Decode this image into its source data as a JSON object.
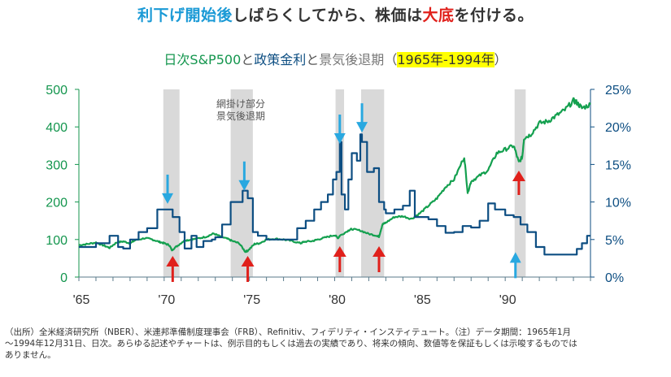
{
  "header": {
    "title_part1": "利下げ開始後",
    "title_part2": "しばらくしてから、株価は",
    "title_part3": "大底",
    "title_part4": "を付ける。",
    "subtitle_part1": "日次S&P500",
    "subtitle_part2": "と",
    "subtitle_part3": "政策金利",
    "subtitle_part4": "と",
    "subtitle_part5": "景気後退期",
    "subtitle_part6": "（",
    "subtitle_part7": "1965年-1994年",
    "subtitle_part8": "）"
  },
  "colors": {
    "sp500": "#14a04f",
    "fed_rate": "#0d4e82",
    "recession": "#d9d9d9",
    "rate_cut_arrow": "#29a8e0",
    "bottom_arrow": "#e0201b",
    "left_axis": "#14964e",
    "right_axis": "#0d4e82"
  },
  "chart_data": {
    "type": "line",
    "title": "日次S&P500と政策金利と景気後退期（1965年-1994年）",
    "xlabel": "",
    "ylabel_left": "S&P500",
    "ylabel_right": "政策金利",
    "x_range": [
      1965,
      1995
    ],
    "ylim_left": [
      0,
      500
    ],
    "ylim_right": [
      0,
      25
    ],
    "yticks_left": [
      "0",
      "100",
      "200",
      "300",
      "400",
      "500"
    ],
    "yticks_right": [
      "0%",
      "5%",
      "10%",
      "15%",
      "20%",
      "25%"
    ],
    "xticks": [
      {
        "year": 1965,
        "label": "'65"
      },
      {
        "year": 1970,
        "label": "'70"
      },
      {
        "year": 1975,
        "label": "'75"
      },
      {
        "year": 1980,
        "label": "'80"
      },
      {
        "year": 1985,
        "label": "'85"
      },
      {
        "year": 1990,
        "label": "'90"
      }
    ],
    "annotation_recession": "網掛け部分\n景気後退期",
    "annotation_recession_line1": "網掛け部分",
    "annotation_recession_line2": "景気後退期",
    "recessions": [
      {
        "start": 1969.95,
        "end": 1970.9
      },
      {
        "start": 1973.9,
        "end": 1975.2
      },
      {
        "start": 1980.05,
        "end": 1980.55
      },
      {
        "start": 1981.55,
        "end": 1982.9
      },
      {
        "start": 1990.55,
        "end": 1991.2
      }
    ],
    "rate_cut_arrows": [
      {
        "x": 1970.2,
        "value_pct": 19.5,
        "direction": "down"
      },
      {
        "x": 1974.7,
        "value_pct": 23.0,
        "direction": "down"
      },
      {
        "x": 1980.3,
        "value_pct": 35.5,
        "direction": "down"
      },
      {
        "x": 1981.6,
        "value_pct": 38.5,
        "direction": "down"
      },
      {
        "x": 1990.6,
        "value_pct": 7.5,
        "direction": "up"
      }
    ],
    "bottom_arrows": [
      {
        "x": 1970.5
      },
      {
        "x": 1974.9
      },
      {
        "x": 1980.3
      },
      {
        "x": 1982.6
      },
      {
        "x": 1990.8
      }
    ],
    "series": [
      {
        "name": "S&P500",
        "axis": "left",
        "x": [
          1965.0,
          1965.5,
          1966.0,
          1966.4,
          1966.8,
          1967.2,
          1967.6,
          1968.0,
          1968.3,
          1968.9,
          1969.3,
          1969.7,
          1970.0,
          1970.3,
          1970.45,
          1970.8,
          1971.2,
          1971.5,
          1972.0,
          1972.5,
          1972.9,
          1973.3,
          1973.7,
          1974.0,
          1974.4,
          1974.75,
          1974.9,
          1975.3,
          1975.6,
          1976.0,
          1976.5,
          1977.0,
          1977.5,
          1978.0,
          1978.2,
          1978.7,
          1979.0,
          1979.5,
          1980.0,
          1980.2,
          1980.3,
          1980.8,
          1981.0,
          1981.5,
          1982.0,
          1982.5,
          1982.6,
          1982.8,
          1983.0,
          1983.5,
          1984.0,
          1984.5,
          1985.0,
          1985.5,
          1986.0,
          1986.5,
          1987.0,
          1987.6,
          1987.8,
          1988.0,
          1988.5,
          1989.0,
          1989.5,
          1990.0,
          1990.5,
          1990.8,
          1991.0,
          1991.1,
          1991.5,
          1992.0,
          1992.5,
          1993.0,
          1993.5,
          1994.0,
          1994.2,
          1994.5,
          1995.0
        ],
        "values": [
          85,
          88,
          92,
          85,
          78,
          92,
          95,
          90,
          98,
          104,
          100,
          94,
          90,
          85,
          72,
          84,
          98,
          99,
          103,
          108,
          116,
          108,
          102,
          96,
          90,
          68,
          70,
          88,
          90,
          100,
          102,
          100,
          96,
          90,
          94,
          96,
          100,
          106,
          112,
          104,
          110,
          124,
          128,
          124,
          115,
          110,
          108,
          140,
          145,
          160,
          162,
          155,
          170,
          190,
          210,
          240,
          260,
          320,
          225,
          255,
          270,
          285,
          330,
          340,
          350,
          305,
          320,
          370,
          380,
          410,
          415,
          430,
          445,
          470,
          465,
          450,
          460
        ]
      },
      {
        "name": "政策金利",
        "axis": "right",
        "x": [
          1965.0,
          1966.0,
          1966.8,
          1967.3,
          1967.6,
          1968.0,
          1968.5,
          1969.0,
          1969.6,
          1970.0,
          1970.5,
          1970.9,
          1971.2,
          1971.6,
          1971.9,
          1972.3,
          1972.8,
          1973.0,
          1973.4,
          1973.9,
          1974.3,
          1974.6,
          1974.9,
          1975.2,
          1975.5,
          1976.0,
          1977.0,
          1977.8,
          1978.3,
          1978.8,
          1979.2,
          1979.6,
          1979.9,
          1980.1,
          1980.3,
          1980.4,
          1980.6,
          1980.8,
          1981.0,
          1981.3,
          1981.5,
          1981.6,
          1981.9,
          1982.3,
          1982.6,
          1982.9,
          1983.0,
          1983.5,
          1984.0,
          1984.4,
          1984.7,
          1985.0,
          1985.5,
          1986.0,
          1986.5,
          1987.0,
          1987.5,
          1988.0,
          1988.5,
          1989.0,
          1989.4,
          1990.0,
          1990.5,
          1990.9,
          1991.3,
          1991.8,
          1992.3,
          1992.8,
          1993.0,
          1994.0,
          1994.2,
          1994.5,
          1994.8,
          1995.0
        ],
        "values": [
          4.0,
          4.5,
          5.5,
          4.0,
          3.8,
          5.0,
          6.0,
          6.5,
          9.0,
          9.0,
          8.0,
          6.0,
          3.8,
          5.5,
          4.0,
          4.8,
          5.0,
          5.3,
          7.0,
          10.0,
          10.0,
          11.5,
          10.5,
          6.0,
          5.5,
          5.0,
          5.0,
          6.5,
          7.5,
          9.0,
          10.0,
          11.0,
          13.0,
          14.0,
          18.0,
          11.0,
          9.0,
          13.0,
          16.5,
          15.5,
          19.0,
          18.0,
          14.0,
          14.5,
          10.0,
          9.0,
          8.5,
          9.0,
          9.5,
          11.5,
          8.0,
          8.0,
          7.7,
          6.8,
          5.9,
          6.0,
          6.8,
          6.6,
          7.5,
          9.8,
          9.0,
          8.25,
          8.0,
          7.0,
          6.0,
          4.0,
          3.0,
          3.0,
          3.0,
          3.0,
          3.75,
          4.5,
          5.5,
          5.5
        ]
      }
    ]
  },
  "footnote": {
    "line1": "（出所）全米経済研究所（NBER）、米連邦準備制度理事会（FRB）、Refinitiv、フィデリティ・インスティテュート。（注）データ期間：1965年1月",
    "line2": "～1994年12月31日、日次。あらゆる記述やチャートは、例示目的もしくは過去の実績であり、将来の傾向、数値等を保証もしくは示唆するものでは",
    "line3": "ありません。"
  }
}
